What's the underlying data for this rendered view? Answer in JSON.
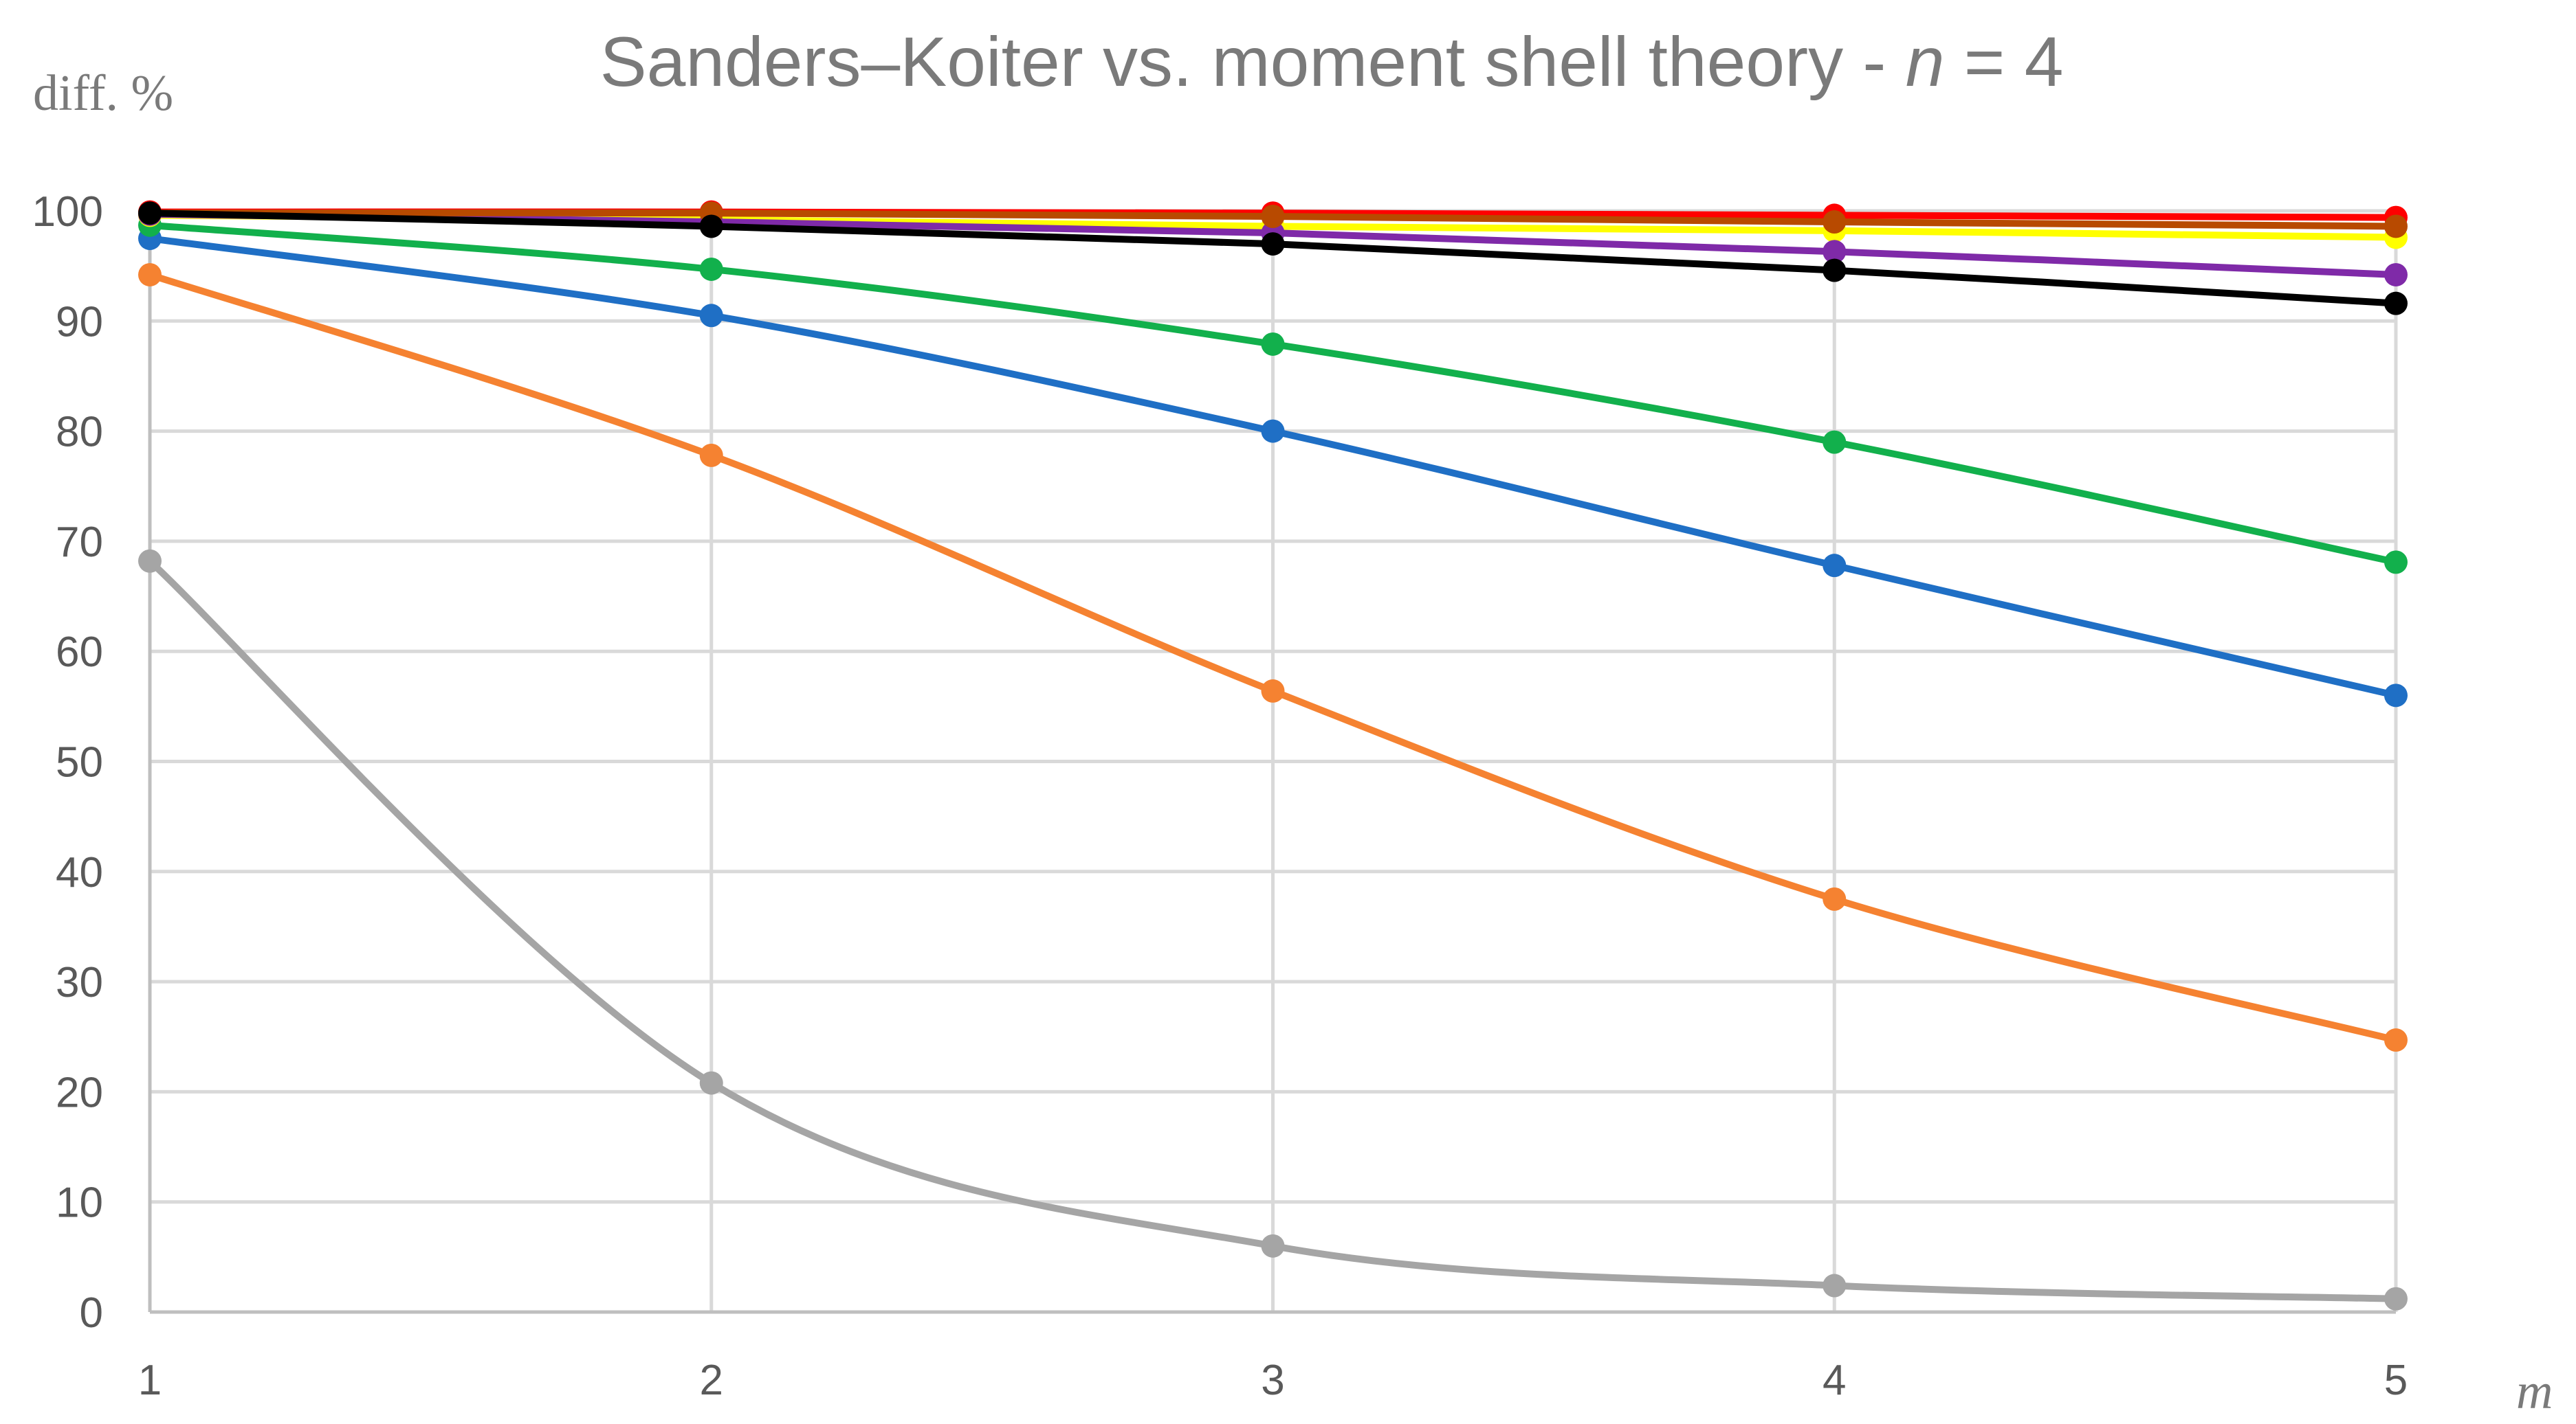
{
  "chart_data": {
    "type": "line",
    "title": "Sanders–Koiter vs. moment shell theory - ",
    "title_var": "n",
    "title_suffix": " = 4",
    "ylabel": "diff. %",
    "xlabel": "m",
    "x": [
      1,
      2,
      3,
      4,
      5
    ],
    "x_tick_labels": [
      "1",
      "2",
      "3",
      "4",
      "5"
    ],
    "ylim": [
      0,
      100
    ],
    "y_ticks": [
      0,
      10,
      20,
      30,
      40,
      50,
      60,
      70,
      80,
      90,
      100
    ],
    "y_tick_labels": [
      "0",
      "10",
      "20",
      "30",
      "40",
      "50",
      "60",
      "70",
      "80",
      "90",
      "100"
    ],
    "grid": true,
    "legend": "none",
    "series": [
      {
        "color": "#a5a5a5",
        "values": [
          68.2,
          20.8,
          6.0,
          2.4,
          1.2
        ]
      },
      {
        "color": "#f58231",
        "values": [
          94.2,
          77.8,
          56.4,
          37.5,
          24.7
        ]
      },
      {
        "color": "#1f6fc5",
        "values": [
          97.5,
          90.5,
          80.0,
          67.8,
          56.0
        ]
      },
      {
        "color": "#12b04c",
        "values": [
          98.7,
          94.7,
          87.9,
          79.0,
          68.1
        ]
      },
      {
        "color": "#ffff00",
        "values": [
          99.6,
          99.2,
          98.6,
          98.2,
          97.6
        ]
      },
      {
        "color": "#7f2aa8",
        "values": [
          99.7,
          99.0,
          98.0,
          96.3,
          94.2
        ]
      },
      {
        "color": "#ff0000",
        "values": [
          99.9,
          99.9,
          99.8,
          99.6,
          99.4
        ]
      },
      {
        "color": "#b84a00",
        "values": [
          99.8,
          99.8,
          99.5,
          99.0,
          98.6
        ]
      },
      {
        "color": "#000000",
        "values": [
          99.8,
          98.6,
          97.0,
          94.6,
          91.6
        ]
      }
    ]
  }
}
